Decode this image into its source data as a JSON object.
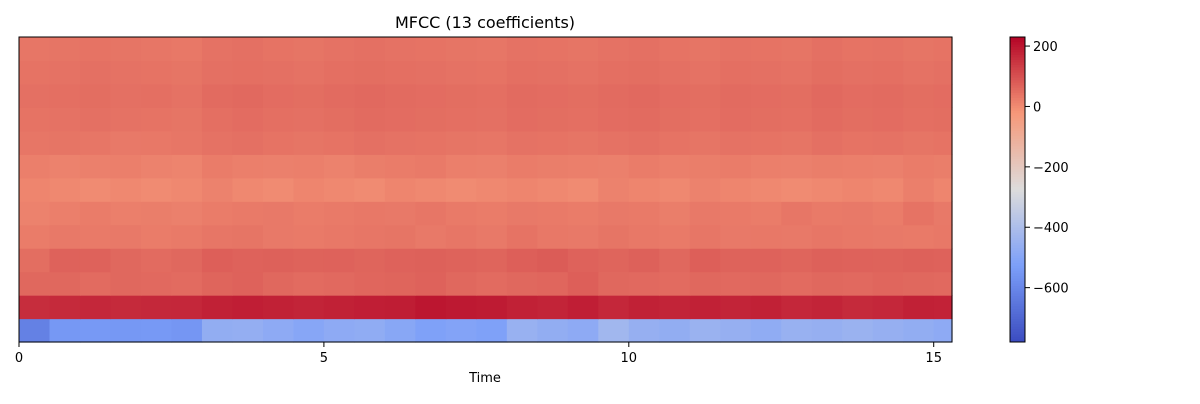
{
  "chart_data": {
    "type": "heatmap",
    "title": "MFCC (13 coefficients)",
    "xlabel": "Time",
    "ylabel": "",
    "xlim": [
      0,
      15.3
    ],
    "x_ticks": [
      0,
      5,
      10,
      15
    ],
    "x_tick_labels": [
      "0",
      "5",
      "10",
      "15"
    ],
    "n_coefficients": 13,
    "coefficients": [
      1,
      2,
      3,
      4,
      5,
      6,
      7,
      8,
      9,
      10,
      11,
      12,
      13
    ],
    "coefficient_order": "coefficient 1 at bottom, coefficient 13 at top",
    "y_ticks_shown": false,
    "time_frames": [
      0.0,
      0.5,
      1.0,
      1.5,
      2.0,
      2.5,
      3.0,
      3.5,
      4.0,
      4.5,
      5.0,
      5.5,
      6.0,
      6.5,
      7.0,
      7.5,
      8.0,
      8.5,
      9.0,
      9.5,
      10.0,
      10.5,
      11.0,
      11.5,
      12.0,
      12.5,
      13.0,
      13.5,
      14.0,
      14.5,
      15.0
    ],
    "values": [
      [
        -620,
        -550,
        -545,
        -550,
        -545,
        -555,
        -470,
        -465,
        -480,
        -500,
        -480,
        -475,
        -495,
        -520,
        -510,
        -520,
        -455,
        -470,
        -480,
        -430,
        -460,
        -470,
        -450,
        -460,
        -475,
        -455,
        -460,
        -450,
        -460,
        -470,
        -480
      ],
      [
        160,
        165,
        170,
        165,
        168,
        170,
        180,
        185,
        180,
        175,
        180,
        185,
        188,
        200,
        195,
        190,
        180,
        175,
        185,
        170,
        180,
        175,
        180,
        175,
        180,
        170,
        175,
        165,
        170,
        180,
        178
      ],
      [
        60,
        60,
        55,
        60,
        58,
        55,
        65,
        70,
        60,
        55,
        58,
        62,
        65,
        70,
        60,
        55,
        60,
        62,
        75,
        60,
        58,
        55,
        60,
        58,
        60,
        55,
        60,
        58,
        62,
        60,
        58
      ],
      [
        50,
        70,
        70,
        60,
        55,
        60,
        75,
        70,
        72,
        68,
        70,
        65,
        70,
        72,
        68,
        65,
        75,
        80,
        70,
        65,
        72,
        60,
        75,
        68,
        70,
        65,
        72,
        70,
        68,
        72,
        70
      ],
      [
        25,
        30,
        28,
        30,
        25,
        28,
        35,
        38,
        30,
        28,
        32,
        35,
        38,
        30,
        35,
        30,
        40,
        32,
        30,
        38,
        32,
        28,
        35,
        30,
        32,
        30,
        35,
        32,
        30,
        28,
        32
      ],
      [
        15,
        20,
        25,
        20,
        22,
        18,
        25,
        28,
        30,
        25,
        28,
        32,
        30,
        35,
        28,
        25,
        30,
        28,
        25,
        30,
        28,
        22,
        30,
        28,
        25,
        35,
        28,
        30,
        25,
        40,
        30
      ],
      [
        10,
        5,
        0,
        5,
        0,
        5,
        15,
        5,
        0,
        10,
        5,
        0,
        10,
        5,
        0,
        5,
        10,
        5,
        0,
        15,
        10,
        5,
        15,
        10,
        5,
        0,
        5,
        10,
        5,
        20,
        10
      ],
      [
        20,
        15,
        18,
        20,
        15,
        12,
        25,
        20,
        18,
        20,
        15,
        22,
        25,
        28,
        20,
        18,
        25,
        22,
        20,
        18,
        25,
        20,
        22,
        25,
        20,
        18,
        22,
        20,
        18,
        25,
        22
      ],
      [
        35,
        38,
        35,
        30,
        32,
        35,
        42,
        45,
        40,
        38,
        40,
        45,
        42,
        40,
        38,
        35,
        42,
        40,
        38,
        42,
        45,
        40,
        38,
        42,
        40,
        38,
        45,
        40,
        42,
        38,
        40
      ],
      [
        40,
        42,
        45,
        42,
        40,
        38,
        48,
        52,
        48,
        45,
        50,
        55,
        52,
        50,
        48,
        45,
        52,
        50,
        48,
        52,
        55,
        50,
        48,
        52,
        50,
        48,
        55,
        50,
        52,
        48,
        50
      ],
      [
        45,
        48,
        50,
        45,
        48,
        42,
        55,
        58,
        52,
        50,
        55,
        58,
        55,
        52,
        50,
        48,
        55,
        52,
        50,
        55,
        58,
        52,
        50,
        55,
        52,
        50,
        58,
        52,
        55,
        50,
        52
      ],
      [
        40,
        42,
        45,
        42,
        40,
        38,
        45,
        48,
        45,
        42,
        48,
        50,
        48,
        45,
        42,
        40,
        48,
        45,
        42,
        48,
        50,
        45,
        42,
        48,
        45,
        42,
        50,
        45,
        48,
        42,
        45
      ],
      [
        35,
        38,
        40,
        38,
        35,
        32,
        42,
        45,
        40,
        38,
        42,
        45,
        42,
        40,
        38,
        35,
        42,
        40,
        38,
        42,
        45,
        40,
        38,
        42,
        40,
        38,
        45,
        40,
        42,
        38,
        40
      ]
    ],
    "colorbar": {
      "colormap": "coolwarm",
      "vmin": -780,
      "vmax": 230,
      "ticks": [
        200,
        0,
        -200,
        -400,
        -600
      ],
      "tick_labels": [
        "200",
        "0",
        "−200",
        "−400",
        "−600"
      ]
    }
  }
}
